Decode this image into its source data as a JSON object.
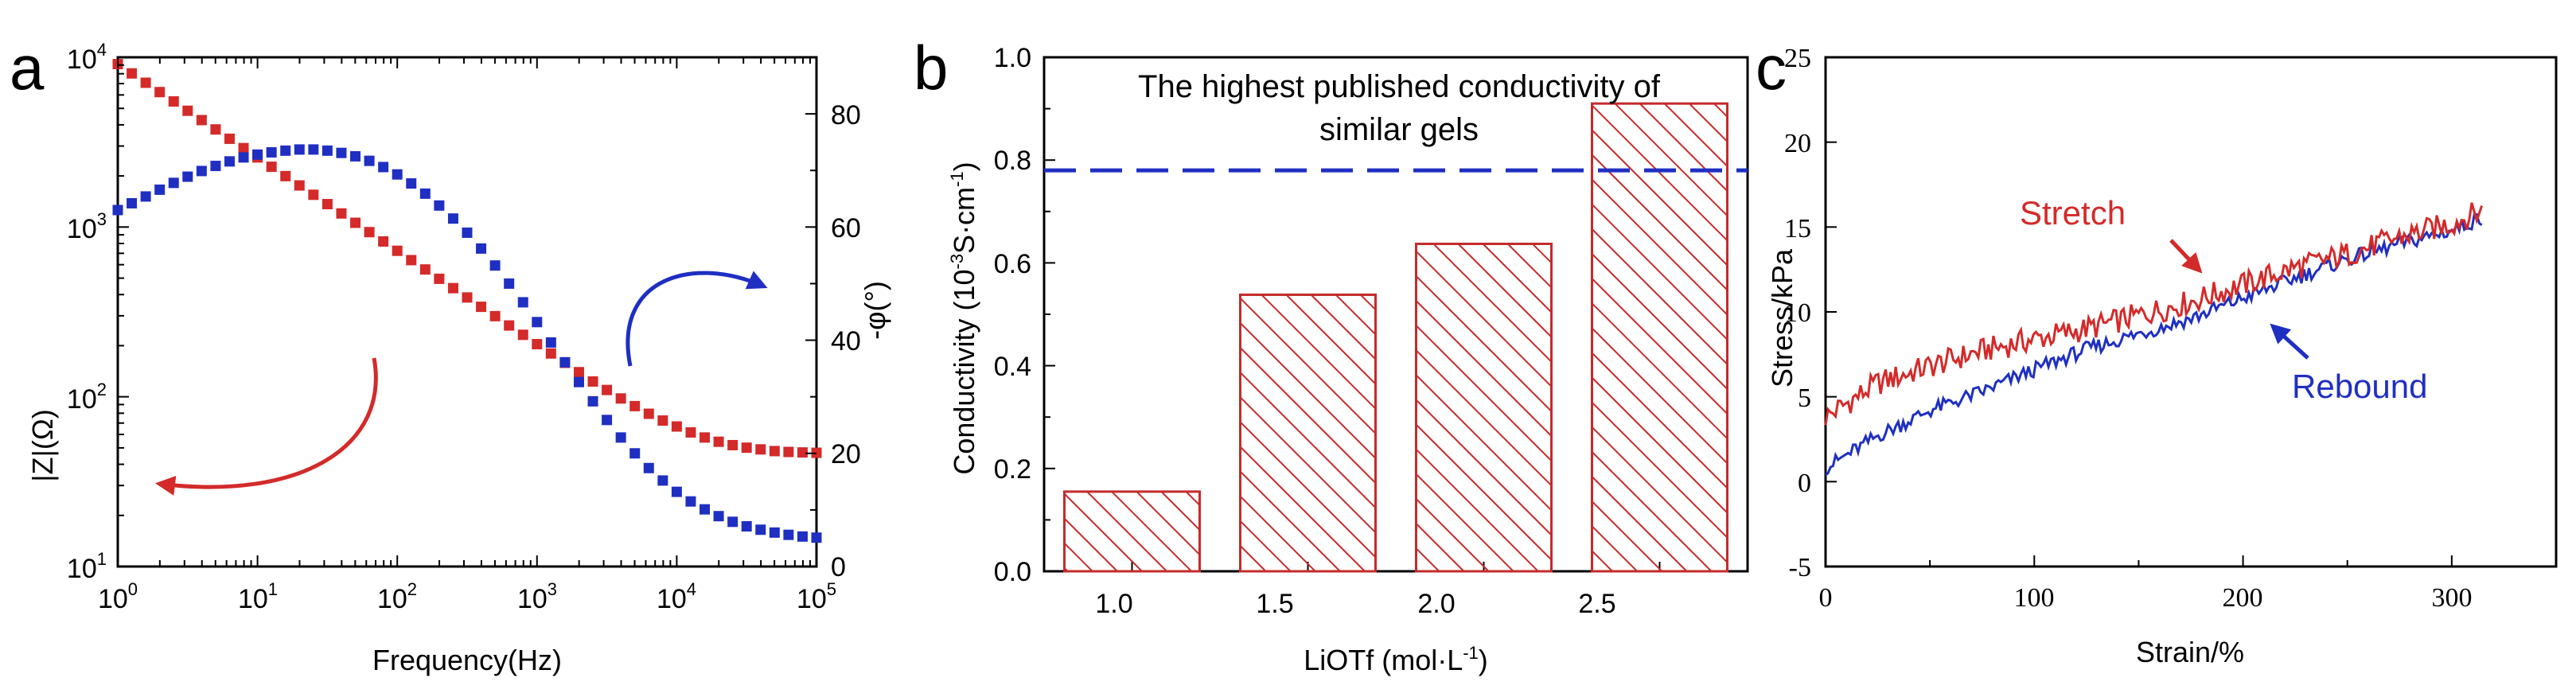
{
  "colors": {
    "red": "#d42a2a",
    "blue": "#1f2fc2",
    "bar_edge": "#c42b2b"
  },
  "panels": [
    {
      "letter": "a",
      "chart_data": {
        "type": "scatter",
        "title": "",
        "xlabel": "Frequency(Hz)",
        "xscale": "log",
        "xlim": [
          1,
          100000
        ],
        "x_tick_labels": [
          {
            "base": "10",
            "exp": "0"
          },
          {
            "base": "10",
            "exp": "1"
          },
          {
            "base": "10",
            "exp": "2"
          },
          {
            "base": "10",
            "exp": "3"
          },
          {
            "base": "10",
            "exp": "4"
          },
          {
            "base": "10",
            "exp": "5"
          }
        ],
        "y_left": {
          "label": "|Z|(Ω)",
          "scale": "log",
          "lim": [
            10,
            10000
          ],
          "tick_labels": [
            {
              "base": "10",
              "exp": "1"
            },
            {
              "base": "10",
              "exp": "2"
            },
            {
              "base": "10",
              "exp": "3"
            },
            {
              "base": "10",
              "exp": "4"
            }
          ]
        },
        "y_right": {
          "label": "-φ(°)",
          "lim": [
            0,
            90
          ],
          "ticks": [
            0,
            20,
            40,
            60,
            80
          ],
          "tick_labels": [
            "0",
            "20",
            "40",
            "60",
            "80"
          ]
        },
        "series": [
          {
            "name": "|Z|",
            "axis": "left",
            "color": "#d42a2a",
            "marker": "square",
            "log10_f_start": 0,
            "log10_f_step": 0.1,
            "count": 51,
            "log10_values": [
              3.96,
              3.905,
              3.85,
              3.795,
              3.74,
              3.685,
              3.63,
              3.575,
              3.52,
              3.465,
              3.41,
              3.355,
              3.3,
              3.245,
              3.19,
              3.135,
              3.08,
              3.025,
              2.97,
              2.915,
              2.86,
              2.805,
              2.75,
              2.695,
              2.64,
              2.585,
              2.53,
              2.475,
              2.42,
              2.365,
              2.31,
              2.255,
              2.2,
              2.145,
              2.09,
              2.04,
              1.99,
              1.945,
              1.9,
              1.86,
              1.825,
              1.79,
              1.76,
              1.735,
              1.715,
              1.7,
              1.69,
              1.68,
              1.675,
              1.672,
              1.67
            ]
          },
          {
            "name": "-φ",
            "axis": "right",
            "color": "#1f2fc2",
            "marker": "square",
            "log10_f_start": 0,
            "log10_f_step": 0.1,
            "count": 51,
            "values": [
              63,
              64.2,
              65.4,
              66.6,
              67.8,
              68.9,
              69.9,
              70.8,
              71.6,
              72.3,
              72.8,
              73.2,
              73.5,
              73.7,
              73.7,
              73.5,
              73.1,
              72.5,
              71.7,
              70.6,
              69.3,
              67.7,
              65.9,
              63.8,
              61.5,
              59,
              56.2,
              53.2,
              50,
              46.7,
              43.2,
              39.6,
              36.1,
              32.6,
              29.2,
              25.9,
              22.8,
              20,
              17.4,
              15.2,
              13.2,
              11.5,
              10.1,
              8.9,
              7.9,
              7.1,
              6.5,
              6,
              5.6,
              5.3,
              5.1
            ]
          }
        ],
        "annotations": []
      }
    },
    {
      "letter": "b",
      "chart_data": {
        "type": "bar",
        "title": "",
        "xlabel_text": "LiOTf (mol·L",
        "xlabel_sup": "-1",
        "xlabel_close": ")",
        "ylabel_text": "Conductivity (10",
        "ylabel_sup1": "-3",
        "ylabel_mid": "S·cm",
        "ylabel_sup2": "-1",
        "ylabel_close": ")",
        "categories": [
          "1.0",
          "1.5",
          "2.0",
          "2.5"
        ],
        "values": [
          0.155,
          0.538,
          0.637,
          0.91
        ],
        "ylim": [
          0,
          1.0
        ],
        "y_ticks": [
          0,
          0.2,
          0.4,
          0.6,
          0.8,
          1.0
        ],
        "y_tick_labels": [
          "0.0",
          "0.2",
          "0.4",
          "0.6",
          "0.8",
          "1.0"
        ],
        "reference_line": {
          "value": 0.78,
          "label_line1": "The highest published conductivity of",
          "label_line2": "similar gels",
          "style": "dashed",
          "color": "#1f2fc2"
        },
        "bar_fill": "hatched"
      }
    },
    {
      "letter": "c",
      "chart_data": {
        "type": "line",
        "title": "",
        "xlabel": "Strain/%",
        "ylabel": "Stress/kPa",
        "xlim": [
          0,
          350
        ],
        "ylim": [
          -5,
          25
        ],
        "x_ticks": [
          0,
          100,
          200,
          300
        ],
        "x_tick_labels": [
          "0",
          "100",
          "200",
          "300"
        ],
        "y_ticks": [
          -5,
          0,
          5,
          10,
          15,
          20,
          25
        ],
        "y_tick_labels": [
          "-5",
          "0",
          "5",
          "10",
          "15",
          "20",
          "25"
        ],
        "series": [
          {
            "name": "Stretch",
            "color": "#d42a2a",
            "x": [
              0,
              25,
              50,
              75,
              100,
              125,
              150,
              175,
              200,
              225,
              250,
              275,
              300,
              315
            ],
            "y": [
              3.8,
              5.8,
              6.8,
              7.7,
              8.4,
              9.0,
              9.8,
              10.6,
              11.6,
              12.6,
              13.4,
              14.4,
              15.2,
              16.0
            ]
          },
          {
            "name": "Rebound",
            "color": "#1f2fc2",
            "x": [
              0,
              25,
              50,
              75,
              100,
              125,
              150,
              175,
              200,
              225,
              250,
              275,
              300,
              315
            ],
            "y": [
              0.8,
              2.7,
              4.2,
              5.3,
              6.6,
              7.8,
              8.7,
              9.6,
              10.8,
              12.0,
              13.1,
              14.0,
              14.8,
              15.6
            ]
          }
        ],
        "annotations": [
          {
            "text": "Stretch",
            "color": "#d42a2a"
          },
          {
            "text": "Rebound",
            "color": "#1f2fc2"
          }
        ]
      }
    }
  ]
}
